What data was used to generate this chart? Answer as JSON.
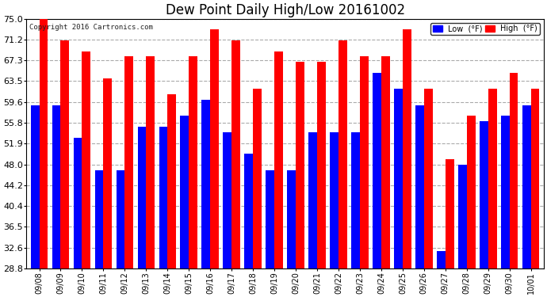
{
  "title": "Dew Point Daily High/Low 20161002",
  "copyright": "Copyright 2016 Cartronics.com",
  "dates": [
    "09/08",
    "09/09",
    "09/10",
    "09/11",
    "09/12",
    "09/13",
    "09/14",
    "09/15",
    "09/16",
    "09/17",
    "09/18",
    "09/19",
    "09/20",
    "09/21",
    "09/22",
    "09/23",
    "09/24",
    "09/25",
    "09/26",
    "09/27",
    "09/28",
    "09/29",
    "09/30",
    "10/01"
  ],
  "low_values": [
    59,
    59,
    53,
    47,
    47,
    55,
    55,
    57,
    60,
    54,
    50,
    47,
    47,
    54,
    54,
    54,
    65,
    62,
    59,
    32,
    48,
    56,
    57,
    59
  ],
  "high_values": [
    75,
    71,
    69,
    64,
    68,
    68,
    61,
    68,
    73,
    71,
    62,
    69,
    67,
    67,
    71,
    68,
    68,
    73,
    62,
    49,
    57,
    62,
    65,
    62
  ],
  "low_color": "#0000ff",
  "high_color": "#ff0000",
  "ylim_min": 28.8,
  "ylim_max": 75.0,
  "yticks": [
    28.8,
    32.6,
    36.5,
    40.4,
    44.2,
    48.0,
    51.9,
    55.8,
    59.6,
    63.5,
    67.3,
    71.2,
    75.0
  ],
  "bg_color": "#ffffff",
  "plot_bg_color": "#ffffff",
  "grid_color": "#aaaaaa",
  "title_fontsize": 12,
  "legend_low_label": "Low  (°F)",
  "legend_high_label": "High  (°F)",
  "bar_width": 0.4,
  "bar_bottom": 28.8
}
